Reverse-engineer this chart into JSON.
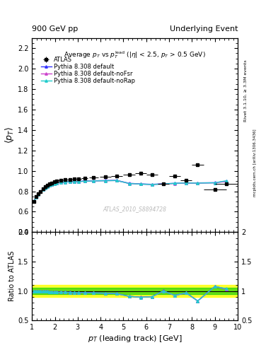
{
  "title_left": "900 GeV pp",
  "title_right": "Underlying Event",
  "right_label_top": "Rivet 3.1.10, ≥ 3.3M events",
  "right_label_bottom": "mcplots.cern.ch [arXiv:1306.3436]",
  "watermark": "ATLAS_2010_S8894728",
  "ylabel_main": "$\\langle p_T \\rangle$",
  "ylabel_ratio": "Ratio to ATLAS",
  "xlabel": "$p_T$ (leading track) [GeV]",
  "xlim": [
    1.0,
    10.0
  ],
  "ylim_main": [
    0.4,
    2.3
  ],
  "ylim_ratio": [
    0.5,
    2.0
  ],
  "yticks_main": [
    0.4,
    0.6,
    0.8,
    1.0,
    1.2,
    1.4,
    1.6,
    1.8,
    2.0,
    2.2
  ],
  "yticks_ratio": [
    0.5,
    1.0,
    1.5,
    2.0
  ],
  "atlas_x": [
    1.075,
    1.175,
    1.275,
    1.375,
    1.475,
    1.575,
    1.675,
    1.775,
    1.875,
    1.975,
    2.075,
    2.25,
    2.45,
    2.65,
    2.85,
    3.05,
    3.3,
    3.7,
    4.2,
    4.7,
    5.25,
    5.75,
    6.25,
    6.75,
    7.25,
    7.75,
    8.25,
    9.0,
    9.5
  ],
  "atlas_y": [
    0.7,
    0.748,
    0.775,
    0.8,
    0.822,
    0.843,
    0.858,
    0.872,
    0.883,
    0.893,
    0.9,
    0.906,
    0.912,
    0.916,
    0.919,
    0.921,
    0.926,
    0.933,
    0.94,
    0.95,
    0.965,
    0.975,
    0.96,
    0.872,
    0.95,
    0.91,
    1.062,
    0.82,
    0.87
  ],
  "atlas_xerr": [
    0.05,
    0.05,
    0.05,
    0.05,
    0.05,
    0.05,
    0.05,
    0.05,
    0.05,
    0.05,
    0.05,
    0.1,
    0.1,
    0.1,
    0.1,
    0.1,
    0.15,
    0.2,
    0.25,
    0.25,
    0.25,
    0.25,
    0.25,
    0.25,
    0.25,
    0.25,
    0.25,
    0.5,
    0.5
  ],
  "atlas_yerr": [
    0.008,
    0.008,
    0.008,
    0.008,
    0.008,
    0.008,
    0.008,
    0.008,
    0.008,
    0.008,
    0.008,
    0.008,
    0.008,
    0.008,
    0.008,
    0.008,
    0.008,
    0.008,
    0.008,
    0.008,
    0.008,
    0.008,
    0.008,
    0.008,
    0.008,
    0.008,
    0.008,
    0.008,
    0.008
  ],
  "py_x": [
    1.075,
    1.175,
    1.275,
    1.375,
    1.475,
    1.575,
    1.675,
    1.775,
    1.875,
    1.975,
    2.075,
    2.25,
    2.45,
    2.65,
    2.85,
    3.05,
    3.3,
    3.7,
    4.2,
    4.7,
    5.25,
    5.75,
    6.25,
    6.75,
    7.25,
    7.75,
    8.25,
    9.0,
    9.5
  ],
  "py_default_y": [
    0.7,
    0.745,
    0.773,
    0.798,
    0.818,
    0.836,
    0.85,
    0.86,
    0.868,
    0.876,
    0.882,
    0.887,
    0.892,
    0.895,
    0.896,
    0.897,
    0.9,
    0.903,
    0.905,
    0.907,
    0.878,
    0.872,
    0.868,
    0.873,
    0.878,
    0.881,
    0.882,
    0.884,
    0.898
  ],
  "py_noFSR_y": [
    0.699,
    0.743,
    0.771,
    0.796,
    0.816,
    0.834,
    0.848,
    0.858,
    0.866,
    0.874,
    0.88,
    0.885,
    0.89,
    0.893,
    0.894,
    0.895,
    0.898,
    0.901,
    0.903,
    0.905,
    0.876,
    0.87,
    0.866,
    0.871,
    0.876,
    0.879,
    0.88,
    0.882,
    0.896
  ],
  "py_noRap_y": [
    0.699,
    0.743,
    0.771,
    0.796,
    0.816,
    0.834,
    0.848,
    0.858,
    0.866,
    0.874,
    0.88,
    0.885,
    0.89,
    0.893,
    0.894,
    0.895,
    0.898,
    0.901,
    0.903,
    0.905,
    0.876,
    0.87,
    0.866,
    0.871,
    0.878,
    0.881,
    0.88,
    0.883,
    0.903
  ],
  "color_default": "#3232ff",
  "color_noFSR": "#cc44cc",
  "color_noRap": "#22cccc",
  "color_atlas": "black",
  "band_yellow_lo": 0.9,
  "band_yellow_hi": 1.1,
  "band_green_lo": 0.95,
  "band_green_hi": 1.05,
  "ratio_default": [
    1.0,
    0.997,
    0.997,
    0.997,
    0.995,
    0.991,
    0.991,
    0.986,
    0.983,
    0.981,
    0.98,
    0.979,
    0.979,
    0.977,
    0.975,
    0.974,
    0.972,
    0.968,
    0.963,
    0.955,
    0.91,
    0.894,
    0.904,
    1.001,
    0.924,
    0.968,
    0.831,
    1.078,
    1.032
  ],
  "ratio_noFSR": [
    0.999,
    0.995,
    0.995,
    0.995,
    0.993,
    0.989,
    0.989,
    0.984,
    0.981,
    0.979,
    0.978,
    0.977,
    0.977,
    0.975,
    0.973,
    0.972,
    0.97,
    0.966,
    0.961,
    0.953,
    0.908,
    0.892,
    0.902,
    0.999,
    0.922,
    0.966,
    0.829,
    1.075,
    1.03
  ],
  "ratio_noRap": [
    0.999,
    0.995,
    0.995,
    0.995,
    0.993,
    0.989,
    0.989,
    0.984,
    0.981,
    0.979,
    0.978,
    0.977,
    0.977,
    0.975,
    0.973,
    0.972,
    0.97,
    0.966,
    0.961,
    0.953,
    0.908,
    0.892,
    0.902,
    0.999,
    0.925,
    0.968,
    0.829,
    1.076,
    1.038
  ]
}
